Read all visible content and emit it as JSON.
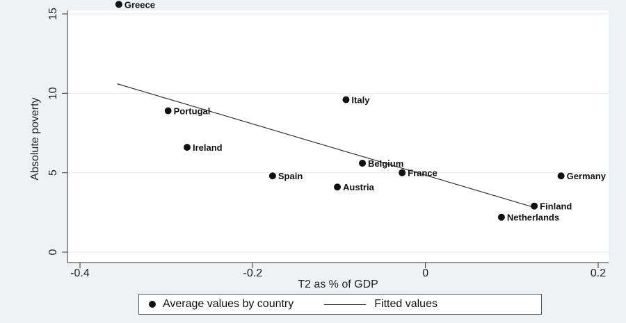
{
  "chart_data": {
    "type": "scatter",
    "xlabel": "T2 as % of GDP",
    "ylabel": "Absolute poverty",
    "xlim": [
      -0.4,
      0.2
    ],
    "ylim": [
      0,
      15
    ],
    "xticks": [
      -0.4,
      -0.2,
      0,
      0.2
    ],
    "xtick_labels": [
      "-0.4",
      "-0.2",
      "0",
      "0.2"
    ],
    "yticks": [
      0,
      5,
      10,
      15
    ],
    "ytick_labels": [
      "0",
      "5",
      "10",
      "15"
    ],
    "grid": "horizontal",
    "legend_position": "bottom",
    "series": [
      {
        "name": "Average values by country",
        "kind": "scatter",
        "points": [
          {
            "label": "Greece",
            "x": -0.355,
            "y": 15.6
          },
          {
            "label": "Portugal",
            "x": -0.298,
            "y": 8.9
          },
          {
            "label": "Italy",
            "x": -0.092,
            "y": 9.6
          },
          {
            "label": "Ireland",
            "x": -0.276,
            "y": 6.6
          },
          {
            "label": "Spain",
            "x": -0.177,
            "y": 4.8
          },
          {
            "label": "Belgium",
            "x": -0.073,
            "y": 5.6
          },
          {
            "label": "Austria",
            "x": -0.102,
            "y": 4.1
          },
          {
            "label": "France",
            "x": -0.027,
            "y": 5.0
          },
          {
            "label": "Germany",
            "x": 0.157,
            "y": 4.8
          },
          {
            "label": "Finland",
            "x": 0.126,
            "y": 2.9
          },
          {
            "label": "Netherlands",
            "x": 0.088,
            "y": 2.2
          }
        ]
      },
      {
        "name": "Fitted values",
        "kind": "line",
        "points": [
          {
            "x": -0.357,
            "y": 10.6
          },
          {
            "x": 0.127,
            "y": 2.8
          }
        ]
      }
    ]
  },
  "legend": {
    "scatter_label": "Average values by country",
    "line_label": "Fitted values"
  },
  "colors": {
    "background": "#eef2f4",
    "plot_background": "#ffffff",
    "marker": "#111111",
    "line": "#333333",
    "grid": "#e3e8ea"
  }
}
